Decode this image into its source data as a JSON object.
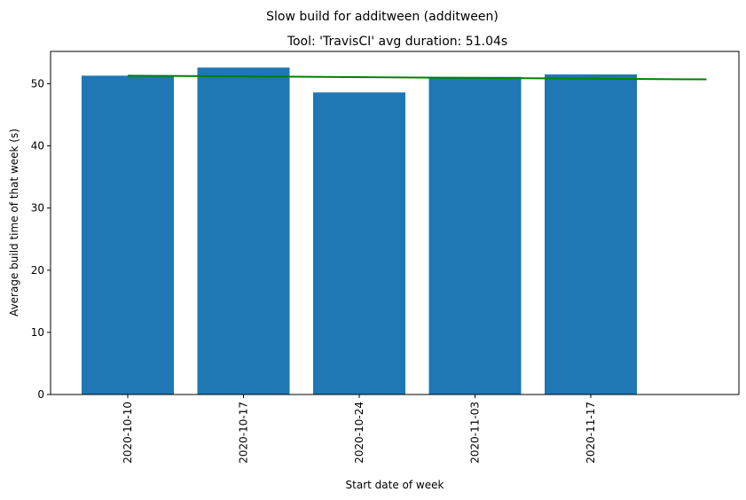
{
  "chart_data": {
    "type": "bar",
    "suptitle": "Slow build for additween (additween)",
    "title": "Tool: 'TravisCI' avg duration: 51.04s",
    "xlabel": "Start date of week",
    "ylabel": "Average build time of that week (s)",
    "categories": [
      "2020-10-10",
      "2020-10-17",
      "2020-10-24",
      "2020-11-03",
      "2020-11-17"
    ],
    "values": [
      51.3,
      52.6,
      48.6,
      51.1,
      51.5
    ],
    "trend_line": {
      "start": 51.3,
      "end": 50.7,
      "x_end_index": 5.0
    },
    "ylim": [
      0,
      55.2
    ],
    "yticks": [
      0,
      10,
      20,
      30,
      40,
      50
    ],
    "grid": false,
    "colors": {
      "bar": "#1f77b4",
      "trend": "#008000",
      "axis": "#000000"
    }
  }
}
